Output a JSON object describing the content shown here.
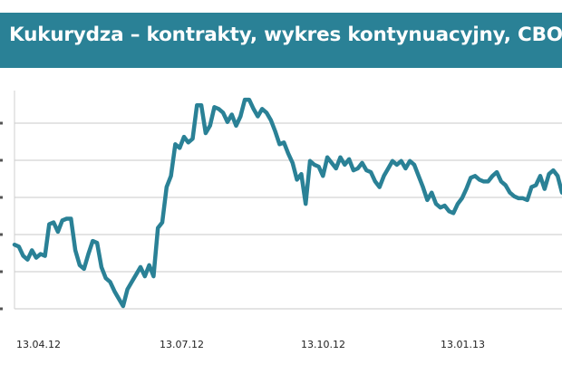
{
  "title": "Kukurydza – kontrakty, wykres kontynuacyjny, CBOT",
  "colors": {
    "title_bar": "#2a8196",
    "title_text": "#ffffff",
    "line": "#2a8196",
    "grid": "#c8c8c8"
  },
  "chart_data": {
    "type": "line",
    "title": "Kukurydza – kontrakty, wykres kontynuacyjny, CBOT",
    "xlabel": "",
    "ylabel": "",
    "x_ticks": [
      "13.04.12",
      "13.07.12",
      "13.10.12",
      "13.01.13"
    ],
    "x_range": [
      "2012-03-21",
      "2013-03-22"
    ],
    "y_range": [
      0,
      1
    ],
    "y_gridlines": [
      0.0,
      0.2,
      0.4,
      0.6,
      0.8,
      1.0
    ],
    "grid": true,
    "legend": "none",
    "series": [
      {
        "values": [
          0.33,
          0.32,
          0.27,
          0.25,
          0.3,
          0.26,
          0.28,
          0.27,
          0.44,
          0.45,
          0.4,
          0.46,
          0.47,
          0.47,
          0.3,
          0.22,
          0.2,
          0.28,
          0.35,
          0.34,
          0.21,
          0.15,
          0.13,
          0.08,
          0.04,
          0.0,
          0.09,
          0.13,
          0.17,
          0.21,
          0.16,
          0.22,
          0.16,
          0.42,
          0.45,
          0.64,
          0.7,
          0.87,
          0.85,
          0.91,
          0.88,
          0.9,
          1.08,
          1.08,
          0.93,
          0.97,
          1.07,
          1.06,
          1.04,
          0.99,
          1.03,
          0.97,
          1.02,
          1.11,
          1.11,
          1.06,
          1.02,
          1.06,
          1.04,
          1.0,
          0.94,
          0.87,
          0.88,
          0.82,
          0.77,
          0.68,
          0.71,
          0.55,
          0.78,
          0.76,
          0.75,
          0.7,
          0.8,
          0.77,
          0.74,
          0.8,
          0.76,
          0.79,
          0.73,
          0.74,
          0.77,
          0.73,
          0.72,
          0.67,
          0.64,
          0.7,
          0.74,
          0.78,
          0.76,
          0.78,
          0.74,
          0.78,
          0.76,
          0.7,
          0.64,
          0.57,
          0.61,
          0.55,
          0.53,
          0.54,
          0.51,
          0.5,
          0.55,
          0.58,
          0.63,
          0.69,
          0.7,
          0.68,
          0.67,
          0.67,
          0.7,
          0.72,
          0.67,
          0.65,
          0.61,
          0.59,
          0.58,
          0.58,
          0.57,
          0.64,
          0.65,
          0.7,
          0.63,
          0.71,
          0.73,
          0.7,
          0.61
        ]
      }
    ]
  }
}
